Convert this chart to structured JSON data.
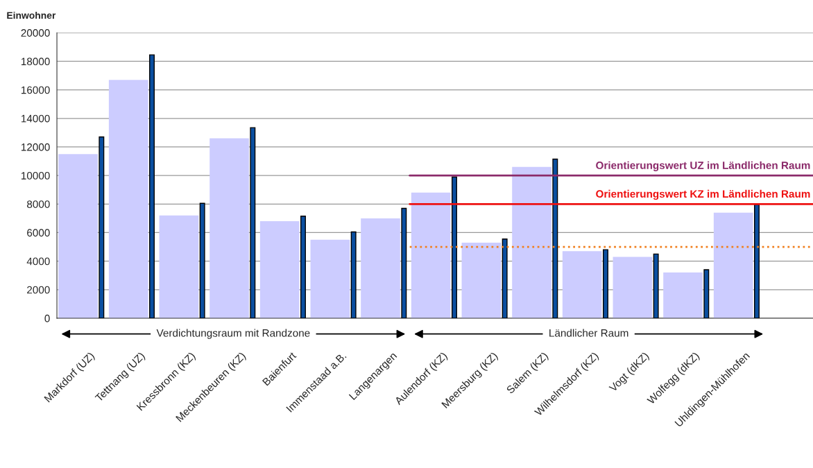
{
  "chart_data": {
    "type": "bar",
    "ylabel": "Einwohner",
    "categories": [
      "Markdorf (UZ)",
      "Tettnang (UZ)",
      "Kressbronn (KZ)",
      "Meckenbeuren (KZ)",
      "Baienfurt",
      "Immenstaad a.B.",
      "Langenargen",
      "Aulendorf (KZ)",
      "Meersburg (KZ)",
      "Salem (KZ)",
      "Wilhelmsdorf (KZ)",
      "Vogt (dKZ)",
      "Wolfegg (dKZ)",
      "Uhldingen-Mühlhofen",
      null
    ],
    "series": [
      {
        "color": "#ccccff",
        "values": [
          11500,
          16700,
          7200,
          12600,
          6800,
          5500,
          7000,
          8800,
          5300,
          10600,
          4700,
          4300,
          3200,
          7400,
          null
        ]
      },
      {
        "color": "#0b4fa0",
        "values": [
          12700,
          18450,
          8050,
          13350,
          7150,
          6050,
          7700,
          9900,
          5550,
          11150,
          4800,
          4500,
          3400,
          7950,
          null
        ]
      }
    ],
    "ylim": [
      0,
      20000
    ],
    "yticks": [
      0,
      2000,
      4000,
      6000,
      8000,
      10000,
      12000,
      14000,
      16000,
      18000,
      20000
    ],
    "grid": "y",
    "legend": false,
    "ref_lines": [
      {
        "axis": "y",
        "value": 10000,
        "label": "Orientierungswert UZ im Ländlichen Raum",
        "color": "#8b2a6a",
        "line_style": "solid"
      },
      {
        "axis": "y",
        "value": 8000,
        "label": "Orientierungswert KZ im Ländlichen Raum",
        "color": "#ee1111",
        "line_style": "solid"
      },
      {
        "axis": "y",
        "value": 5000,
        "label": null,
        "color": "#f08020",
        "line_style": "dotted"
      }
    ],
    "annotations": [
      "Verdichtungsraum mit Randzone",
      "Ländlicher Raum"
    ]
  }
}
